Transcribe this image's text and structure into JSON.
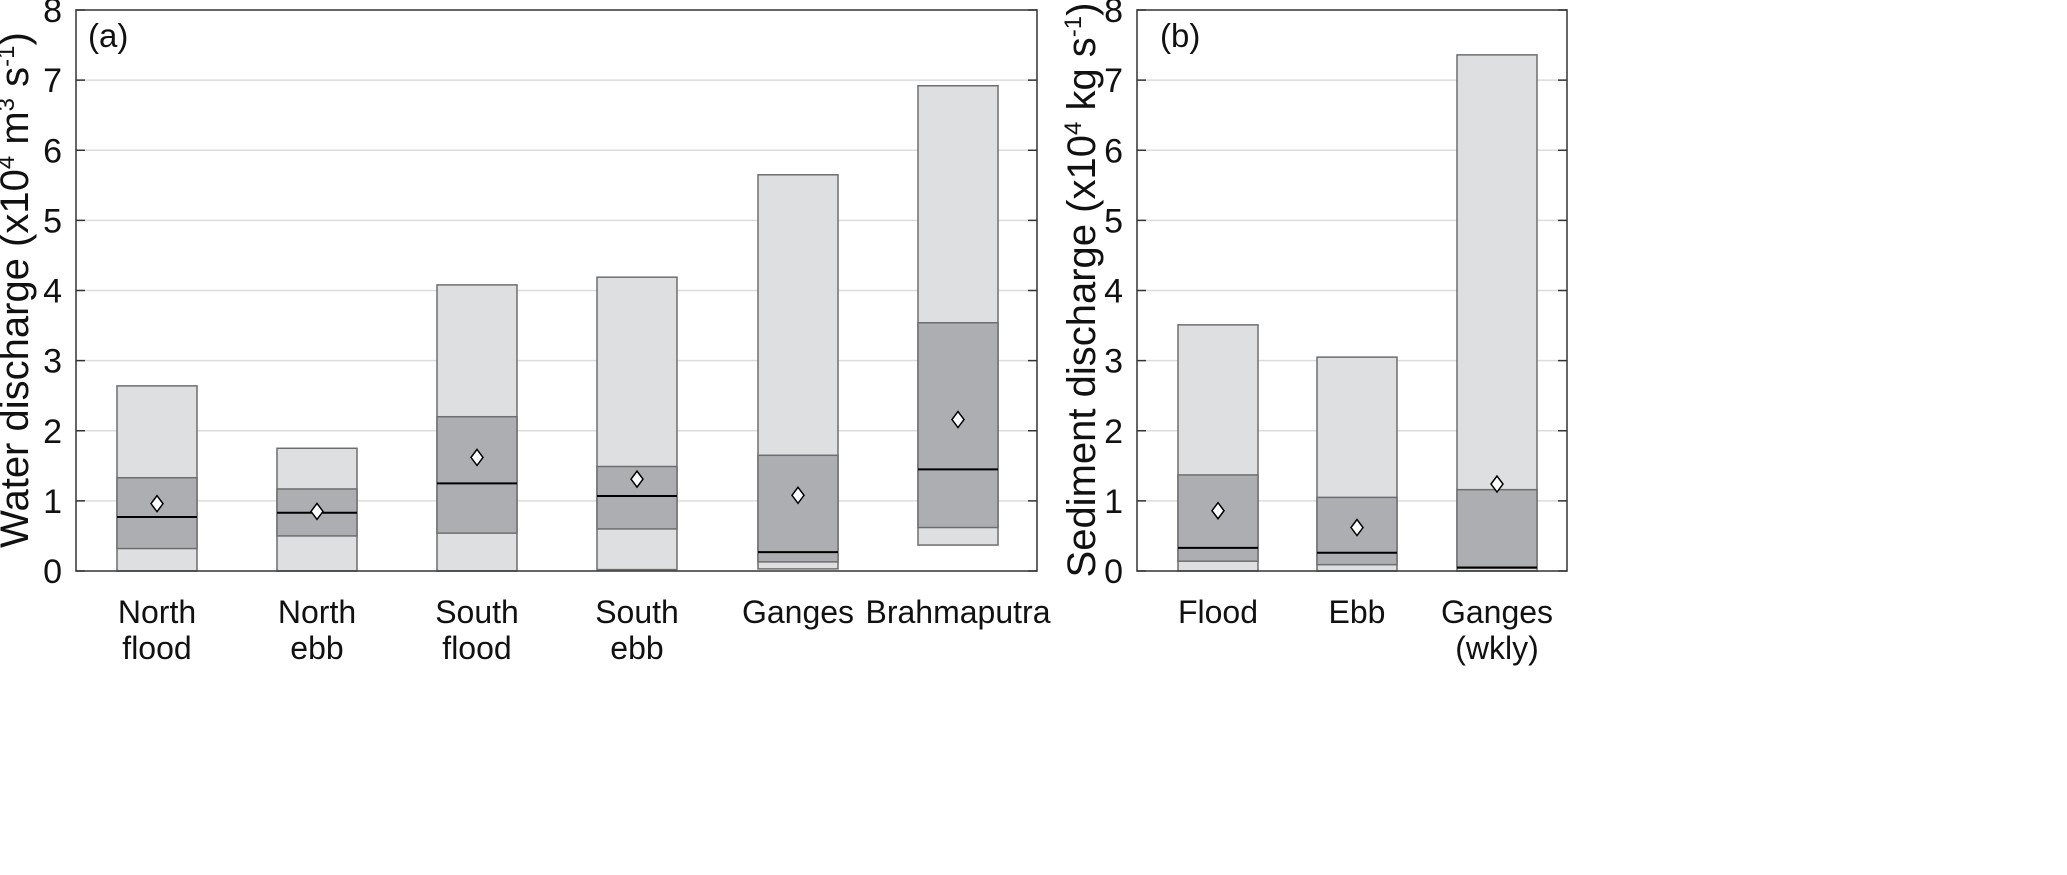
{
  "chart_data": [
    {
      "type": "box",
      "panel_label": "(a)",
      "ylabel": {
        "pre": "Water discharge (x10",
        "exp1": "4",
        "mid": " m",
        "exp2": "3",
        "mid2": " s",
        "exp3": "-1",
        "post": ")"
      },
      "ylim": [
        0,
        8
      ],
      "yticks": [
        0,
        1,
        2,
        3,
        4,
        5,
        6,
        7,
        8
      ],
      "grid": true,
      "categories": [
        {
          "lines": [
            "North",
            "flood"
          ]
        },
        {
          "lines": [
            "North",
            "ebb"
          ]
        },
        {
          "lines": [
            "South",
            "flood"
          ]
        },
        {
          "lines": [
            "South",
            "ebb"
          ]
        },
        {
          "lines": [
            "Ganges"
          ]
        },
        {
          "lines": [
            "Brahmaputra"
          ]
        }
      ],
      "boxes": [
        {
          "min": 0.0,
          "q1": 0.32,
          "median": 0.77,
          "q3": 1.33,
          "max": 2.64,
          "mean": 0.96
        },
        {
          "min": 0.0,
          "q1": 0.5,
          "median": 0.83,
          "q3": 1.17,
          "max": 1.75,
          "mean": 0.85
        },
        {
          "min": 0.0,
          "q1": 0.54,
          "median": 1.25,
          "q3": 2.2,
          "max": 4.08,
          "mean": 1.62
        },
        {
          "min": 0.02,
          "q1": 0.6,
          "median": 1.07,
          "q3": 1.49,
          "max": 4.19,
          "mean": 1.31
        },
        {
          "min": 0.03,
          "q1": 0.13,
          "median": 0.27,
          "q3": 1.65,
          "max": 5.65,
          "mean": 1.08
        },
        {
          "min": 0.37,
          "q1": 0.62,
          "median": 1.45,
          "q3": 3.54,
          "max": 6.92,
          "mean": 2.16
        }
      ]
    },
    {
      "type": "box",
      "panel_label": "(b)",
      "ylabel": {
        "pre": "Sediment discharge (x10",
        "exp1": "4",
        "mid": " kg s",
        "exp2": "-1",
        "post": ")"
      },
      "ylim": [
        0,
        8
      ],
      "yticks": [
        0,
        1,
        2,
        3,
        4,
        5,
        6,
        7,
        8
      ],
      "grid": true,
      "categories": [
        {
          "lines": [
            "Flood"
          ]
        },
        {
          "lines": [
            "Ebb"
          ]
        },
        {
          "lines": [
            "Ganges",
            "(wkly)"
          ]
        }
      ],
      "boxes": [
        {
          "min": 0.0,
          "q1": 0.14,
          "median": 0.33,
          "q3": 1.37,
          "max": 3.51,
          "mean": 0.86
        },
        {
          "min": 0.0,
          "q1": 0.09,
          "median": 0.26,
          "q3": 1.05,
          "max": 3.05,
          "mean": 0.62
        },
        {
          "min": 0.0,
          "q1": 0.04,
          "median": 0.05,
          "q3": 1.16,
          "max": 7.36,
          "mean": 1.24
        }
      ]
    }
  ],
  "colors": {
    "outer_box": "#dedfe1",
    "inner_box": "#adaeb2",
    "box_edge": "#6e6e6e",
    "median_line": "#000000",
    "mean_marker_fill": "#ffffff",
    "gridline": "#dcdcdc",
    "axis": "#333333"
  }
}
